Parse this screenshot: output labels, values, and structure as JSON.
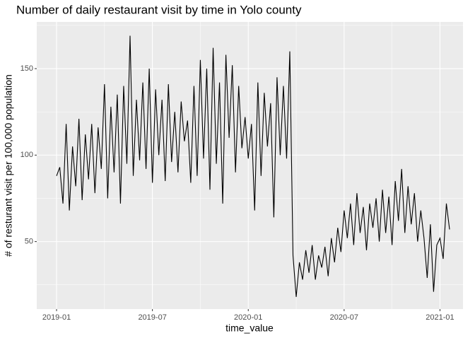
{
  "chart_data": {
    "type": "line",
    "title": "Number of daily restaurant visit by time in Yolo county",
    "x_label": "time_value",
    "y_label": "# of resturant visit per 100,000 population",
    "x": [
      0,
      0.2,
      0.4,
      0.6,
      0.8,
      1,
      1.2,
      1.4,
      1.6,
      1.8,
      2,
      2.2,
      2.4,
      2.6,
      2.8,
      3,
      3.2,
      3.4,
      3.6,
      3.8,
      4,
      4.2,
      4.4,
      4.6,
      4.8,
      5,
      5.2,
      5.4,
      5.6,
      5.8,
      6,
      6.2,
      6.4,
      6.6,
      6.8,
      7,
      7.2,
      7.4,
      7.6,
      7.8,
      8,
      8.2,
      8.4,
      8.6,
      8.8,
      9,
      9.2,
      9.4,
      9.6,
      9.8,
      10,
      10.2,
      10.4,
      10.6,
      10.8,
      11,
      11.2,
      11.4,
      11.6,
      11.8,
      12,
      12.2,
      12.4,
      12.6,
      12.8,
      13,
      13.2,
      13.4,
      13.6,
      13.8,
      14,
      14.2,
      14.4,
      14.6,
      14.8,
      15,
      15.2,
      15.4,
      15.6,
      15.8,
      16,
      16.2,
      16.4,
      16.6,
      16.8,
      17,
      17.2,
      17.4,
      17.6,
      17.8,
      18,
      18.2,
      18.4,
      18.6,
      18.8,
      19,
      19.2,
      19.4,
      19.6,
      19.8,
      20,
      20.2,
      20.4,
      20.6,
      20.8,
      21,
      21.2,
      21.4,
      21.6,
      21.8,
      22,
      22.2,
      22.4,
      22.6,
      22.8,
      23,
      23.2,
      23.4,
      23.6,
      23.8,
      24,
      24.2,
      24.4,
      24.6
    ],
    "series": [
      {
        "color": "#000000",
        "values": [
          88,
          93,
          72,
          118,
          68,
          105,
          82,
          121,
          74,
          112,
          86,
          118,
          78,
          116,
          92,
          141,
          75,
          128,
          90,
          135,
          72,
          140,
          95,
          169,
          88,
          132,
          97,
          142,
          92,
          150,
          84,
          138,
          100,
          132,
          85,
          141,
          96,
          125,
          90,
          131,
          108,
          120,
          84,
          140,
          88,
          155,
          98,
          150,
          80,
          162,
          95,
          142,
          72,
          158,
          110,
          152,
          90,
          140,
          104,
          122,
          98,
          118,
          68,
          142,
          88,
          136,
          105,
          130,
          64,
          145,
          100,
          140,
          98,
          160,
          42,
          18,
          38,
          28,
          45,
          32,
          48,
          28,
          42,
          35,
          47,
          30,
          52,
          38,
          58,
          44,
          68,
          52,
          72,
          48,
          78,
          55,
          70,
          45,
          72,
          58,
          75,
          50,
          80,
          55,
          76,
          48,
          85,
          62,
          92,
          55,
          82,
          60,
          78,
          50,
          68,
          52,
          29,
          60,
          21,
          48,
          52,
          40,
          72,
          57
        ]
      }
    ],
    "xlim": [
      -1.24,
      25.44
    ],
    "xticks": [
      {
        "value": 0,
        "label": "2019-01"
      },
      {
        "value": 6,
        "label": "2019-07"
      },
      {
        "value": 12,
        "label": "2020-01"
      },
      {
        "value": 18,
        "label": "2020-07"
      },
      {
        "value": 24,
        "label": "2021-01"
      }
    ],
    "ylim": [
      11,
      177
    ],
    "yticks": [
      50,
      100,
      150
    ],
    "grid": true
  }
}
